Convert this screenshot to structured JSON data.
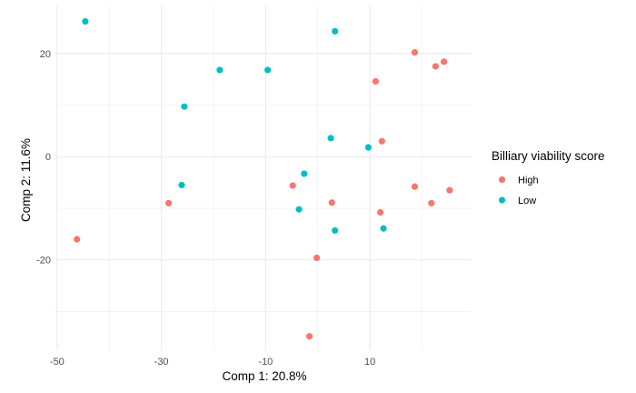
{
  "chart_data": {
    "type": "scatter",
    "xlabel": "Comp 1: 20.8%",
    "ylabel": "Comp 2: 11.6%",
    "xlim": [
      -50.5,
      29.5
    ],
    "ylim": [
      -37.5,
      29.3
    ],
    "x_ticks": [
      -50,
      -30,
      -10,
      10
    ],
    "x_tick_labels": [
      "-50",
      "-30",
      "-10",
      "10"
    ],
    "y_ticks": [
      -20,
      0,
      20
    ],
    "y_tick_labels": [
      "-20",
      "0",
      "20"
    ],
    "grid": true,
    "legend": {
      "title": "Billiary viability score",
      "position": "right",
      "entries": [
        "High",
        "Low"
      ]
    },
    "colors": {
      "High": "#F8766D",
      "Low": "#00BFC4"
    },
    "series": [
      {
        "name": "High",
        "points": [
          {
            "x": 18.6,
            "y": 20.2
          },
          {
            "x": 22.6,
            "y": 17.5
          },
          {
            "x": 24.2,
            "y": 18.4
          },
          {
            "x": 11.1,
            "y": 14.6
          },
          {
            "x": 12.3,
            "y": 3.0
          },
          {
            "x": 18.6,
            "y": -5.8
          },
          {
            "x": 25.3,
            "y": -6.5
          },
          {
            "x": 21.8,
            "y": -9.0
          },
          {
            "x": 12.0,
            "y": -10.8
          },
          {
            "x": 2.7,
            "y": -8.9
          },
          {
            "x": -4.8,
            "y": -5.6
          },
          {
            "x": -28.6,
            "y": -9.0
          },
          {
            "x": -46.2,
            "y": -16.0
          },
          {
            "x": -0.2,
            "y": -19.6
          },
          {
            "x": -1.6,
            "y": -34.8
          }
        ]
      },
      {
        "name": "Low",
        "points": [
          {
            "x": -44.6,
            "y": 26.2
          },
          {
            "x": 3.3,
            "y": 24.3
          },
          {
            "x": -18.8,
            "y": 16.8
          },
          {
            "x": -9.6,
            "y": 16.8
          },
          {
            "x": -25.6,
            "y": 9.7
          },
          {
            "x": 2.5,
            "y": 3.6
          },
          {
            "x": 9.7,
            "y": 1.8
          },
          {
            "x": -2.6,
            "y": -3.3
          },
          {
            "x": -26.1,
            "y": -5.5
          },
          {
            "x": -3.6,
            "y": -10.2
          },
          {
            "x": 12.6,
            "y": -13.9
          },
          {
            "x": 3.3,
            "y": -14.3
          }
        ]
      }
    ]
  }
}
